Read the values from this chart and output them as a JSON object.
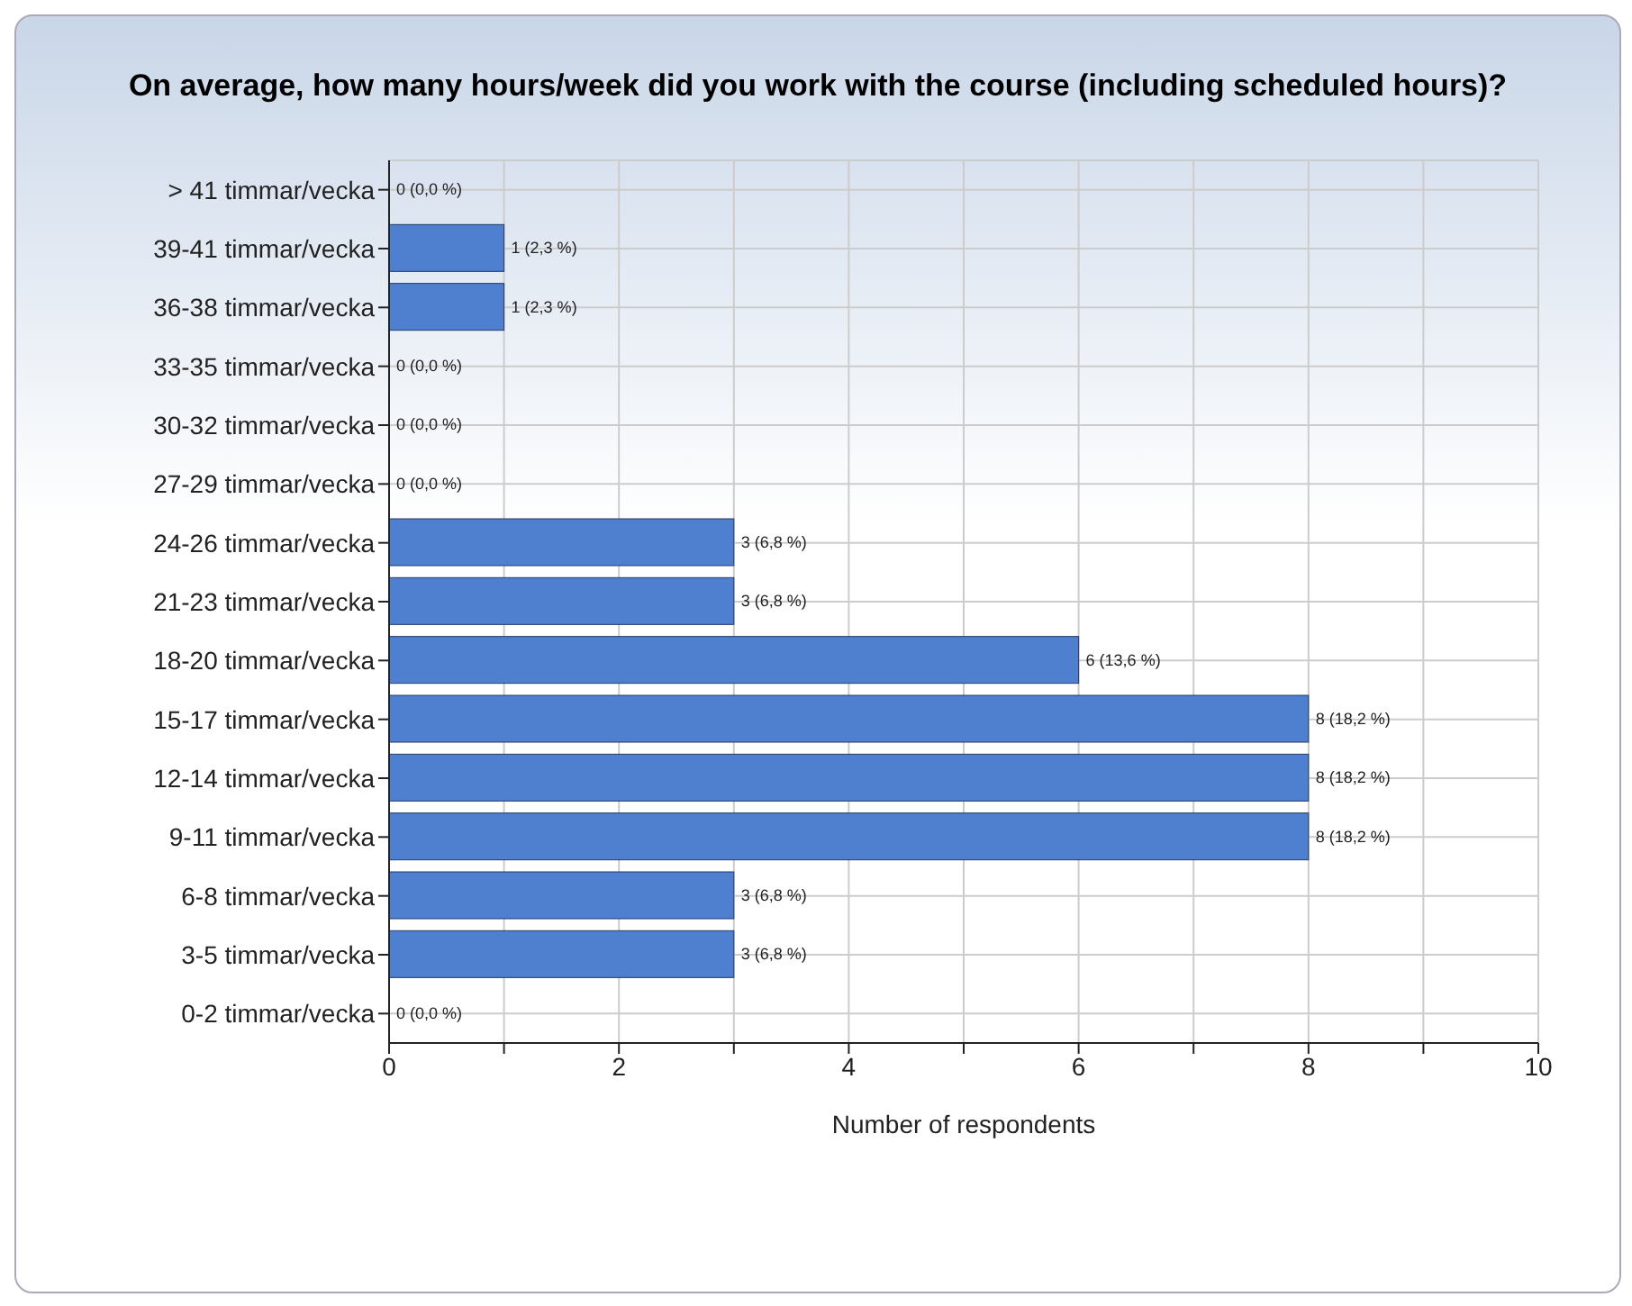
{
  "chart_data": {
    "type": "bar",
    "orientation": "horizontal",
    "title": "On average, how many hours/week did you work with the course (including scheduled hours)?",
    "xlabel": "Number of respondents",
    "categories": [
      "> 41 timmar/vecka",
      "39-41 timmar/vecka",
      "36-38 timmar/vecka",
      "33-35 timmar/vecka",
      "30-32 timmar/vecka",
      "27-29 timmar/vecka",
      "24-26 timmar/vecka",
      "21-23 timmar/vecka",
      "18-20 timmar/vecka",
      "15-17 timmar/vecka",
      "12-14 timmar/vecka",
      "9-11 timmar/vecka",
      "6-8 timmar/vecka",
      "3-5 timmar/vecka",
      "0-2 timmar/vecka"
    ],
    "values": [
      0,
      1,
      1,
      0,
      0,
      0,
      3,
      3,
      6,
      8,
      8,
      8,
      3,
      3,
      0
    ],
    "value_labels": [
      "0 (0,0 %)",
      "1 (2,3 %)",
      "1 (2,3 %)",
      "0 (0,0 %)",
      "0 (0,0 %)",
      "0 (0,0 %)",
      "3 (6,8 %)",
      "3 (6,8 %)",
      "6 (13,6 %)",
      "8 (18,2 %)",
      "8 (18,2 %)",
      "8 (18,2 %)",
      "3 (6,8 %)",
      "3 (6,8 %)",
      "0 (0,0 %)"
    ],
    "color": "#4f7fcf",
    "xlim": [
      0,
      10
    ],
    "xticks": [
      0,
      {
        "value": 1,
        "label": null
      },
      2,
      {
        "value": 3,
        "label": null
      },
      4,
      {
        "value": 5,
        "label": null
      },
      6,
      {
        "value": 7,
        "label": null
      },
      8,
      {
        "value": 9,
        "label": null
      },
      10
    ],
    "grid": true
  }
}
